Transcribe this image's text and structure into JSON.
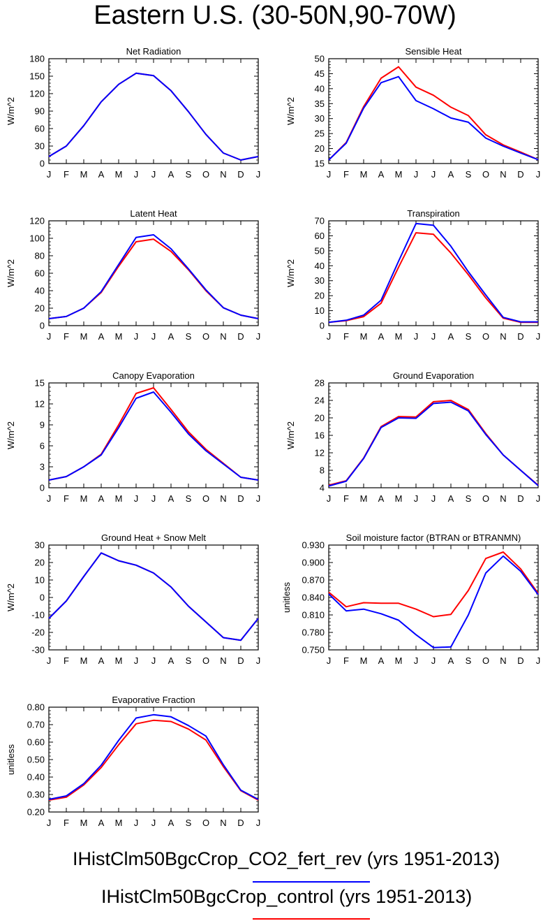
{
  "title": "Eastern U.S. (30-50N,90-70W)",
  "colors": {
    "fert_rev": "#0000ff",
    "control": "#ff0000"
  },
  "legend": {
    "entries": [
      {
        "label": "IHistClm50BgcCrop_CO2_fert_rev (yrs 1951-2013)",
        "color": "#0000ff"
      },
      {
        "label": "IHistClm50BgcCrop_control (yrs 1951-2013)",
        "color": "#ff0000"
      }
    ]
  },
  "chart_data": [
    {
      "type": "line",
      "title": "Net Radiation",
      "ylabel": "W/m^2",
      "categories": [
        "J",
        "F",
        "M",
        "A",
        "M",
        "J",
        "J",
        "A",
        "S",
        "O",
        "N",
        "D",
        "J"
      ],
      "ylim": [
        0,
        180
      ],
      "yticks": [
        "0",
        "30",
        "60",
        "90",
        "120",
        "150",
        "180"
      ],
      "series": [
        {
          "color": "#ff0000",
          "values": [
            12,
            30,
            65,
            106,
            136,
            155,
            151,
            125,
            89,
            50,
            18,
            6,
            12
          ]
        },
        {
          "color": "#0000ff",
          "values": [
            12,
            30,
            65,
            106,
            136,
            155,
            151,
            125,
            89,
            50,
            18,
            6,
            12
          ]
        }
      ]
    },
    {
      "type": "line",
      "title": "Sensible Heat",
      "ylabel": "W/m^2",
      "categories": [
        "J",
        "F",
        "M",
        "A",
        "M",
        "J",
        "J",
        "A",
        "S",
        "O",
        "N",
        "D",
        "J"
      ],
      "ylim": [
        15,
        50
      ],
      "yticks": [
        "15",
        "20",
        "25",
        "30",
        "35",
        "40",
        "45",
        "50"
      ],
      "series": [
        {
          "color": "#ff0000",
          "values": [
            16.2,
            22,
            34,
            43.5,
            47.3,
            40.5,
            37.8,
            33.8,
            31,
            24.6,
            21.2,
            18.8,
            16.3
          ]
        },
        {
          "color": "#0000ff",
          "values": [
            16.2,
            21.8,
            33.5,
            42,
            44,
            36,
            33.3,
            30.2,
            28.8,
            23.5,
            20.8,
            18.5,
            16.3
          ]
        }
      ]
    },
    {
      "type": "line",
      "title": "Latent Heat",
      "ylabel": "W/m^2",
      "categories": [
        "J",
        "F",
        "M",
        "A",
        "M",
        "J",
        "J",
        "A",
        "S",
        "O",
        "N",
        "D",
        "J"
      ],
      "ylim": [
        0,
        120
      ],
      "yticks": [
        "0",
        "20",
        "40",
        "60",
        "80",
        "100",
        "120"
      ],
      "series": [
        {
          "color": "#ff0000",
          "values": [
            8,
            10.5,
            20,
            38,
            68,
            96,
            99,
            85,
            64,
            40,
            20.5,
            12,
            8
          ]
        },
        {
          "color": "#0000ff",
          "values": [
            8,
            10.5,
            20,
            39,
            70,
            101,
            104,
            88,
            65,
            41,
            20.5,
            12,
            8
          ]
        }
      ]
    },
    {
      "type": "line",
      "title": "Transpiration",
      "ylabel": "W/m^2",
      "categories": [
        "J",
        "F",
        "M",
        "A",
        "M",
        "J",
        "J",
        "A",
        "S",
        "O",
        "N",
        "D",
        "J"
      ],
      "ylim": [
        0,
        70
      ],
      "yticks": [
        "0",
        "10",
        "20",
        "30",
        "40",
        "50",
        "60",
        "70"
      ],
      "series": [
        {
          "color": "#ff0000",
          "values": [
            2.2,
            3.3,
            6,
            15,
            39,
            62,
            61,
            48.5,
            34,
            18.5,
            5,
            2.2,
            2.2
          ]
        },
        {
          "color": "#0000ff",
          "values": [
            2.2,
            3.6,
            7,
            17,
            43,
            68.2,
            67,
            53,
            36,
            20.5,
            5.5,
            2.5,
            2.5
          ]
        }
      ]
    },
    {
      "type": "line",
      "title": "Canopy Evaporation",
      "ylabel": "W/m^2",
      "categories": [
        "J",
        "F",
        "M",
        "A",
        "M",
        "J",
        "J",
        "A",
        "S",
        "O",
        "N",
        "D",
        "J"
      ],
      "ylim": [
        0,
        15
      ],
      "yticks": [
        "0",
        "3",
        "6",
        "9",
        "12",
        "15"
      ],
      "series": [
        {
          "color": "#ff0000",
          "values": [
            1.1,
            1.6,
            3,
            4.8,
            9,
            13.5,
            14.3,
            11.2,
            8,
            5.5,
            3.5,
            1.5,
            1.1
          ]
        },
        {
          "color": "#0000ff",
          "values": [
            1.1,
            1.6,
            3,
            4.7,
            8.6,
            12.8,
            13.7,
            10.8,
            7.7,
            5.3,
            3.4,
            1.5,
            1.1
          ]
        }
      ]
    },
    {
      "type": "line",
      "title": "Ground Evaporation",
      "ylabel": "W/m^2",
      "categories": [
        "J",
        "F",
        "M",
        "A",
        "M",
        "J",
        "J",
        "A",
        "S",
        "O",
        "N",
        "D",
        "J"
      ],
      "ylim": [
        4,
        28
      ],
      "yticks": [
        "4",
        "8",
        "12",
        "16",
        "20",
        "24",
        "28"
      ],
      "series": [
        {
          "color": "#ff0000",
          "values": [
            4.6,
            5.6,
            10.8,
            18,
            20.3,
            20.2,
            23.7,
            24,
            21.9,
            16.4,
            11.5,
            8,
            4.6
          ]
        },
        {
          "color": "#0000ff",
          "values": [
            4.4,
            5.5,
            10.7,
            17.8,
            20,
            19.9,
            23.3,
            23.6,
            21.6,
            16.2,
            11.5,
            8,
            4.5
          ]
        }
      ]
    },
    {
      "type": "line",
      "title": "Ground Heat + Snow Melt",
      "ylabel": "W/m^2",
      "categories": [
        "J",
        "F",
        "M",
        "A",
        "M",
        "J",
        "J",
        "A",
        "S",
        "O",
        "N",
        "D",
        "J"
      ],
      "ylim": [
        -30,
        30
      ],
      "yticks": [
        "-30",
        "-20",
        "-10",
        "0",
        "10",
        "20",
        "30"
      ],
      "series": [
        {
          "color": "#ff0000",
          "values": [
            -12,
            -2,
            12,
            25.5,
            21,
            18.5,
            14,
            6,
            -5,
            -14,
            -23,
            -24.5,
            -12
          ]
        },
        {
          "color": "#0000ff",
          "values": [
            -12,
            -2,
            12,
            25.5,
            21,
            18.5,
            14,
            6,
            -5,
            -14,
            -23,
            -24.5,
            -12
          ]
        }
      ]
    },
    {
      "type": "line",
      "title": "Soil moisture factor (BTRAN or BTRANMN)",
      "ylabel": "unitless",
      "categories": [
        "J",
        "F",
        "M",
        "A",
        "M",
        "J",
        "J",
        "A",
        "S",
        "O",
        "N",
        "D",
        "J"
      ],
      "ylim": [
        0.75,
        0.93
      ],
      "yticks": [
        "0.750",
        "0.780",
        "0.810",
        "0.840",
        "0.870",
        "0.900",
        "0.930"
      ],
      "series": [
        {
          "color": "#ff0000",
          "values": [
            0.849,
            0.824,
            0.831,
            0.83,
            0.83,
            0.82,
            0.807,
            0.811,
            0.852,
            0.907,
            0.918,
            0.889,
            0.847
          ]
        },
        {
          "color": "#0000ff",
          "values": [
            0.846,
            0.817,
            0.82,
            0.812,
            0.801,
            0.776,
            0.754,
            0.755,
            0.81,
            0.882,
            0.911,
            0.885,
            0.845
          ]
        }
      ]
    },
    {
      "type": "line",
      "title": "Evaporative Fraction",
      "ylabel": "unitless",
      "categories": [
        "J",
        "F",
        "M",
        "A",
        "M",
        "J",
        "J",
        "A",
        "S",
        "O",
        "N",
        "D",
        "J"
      ],
      "ylim": [
        0.2,
        0.8
      ],
      "yticks": [
        "0.20",
        "0.30",
        "0.40",
        "0.50",
        "0.60",
        "0.70",
        "0.80"
      ],
      "series": [
        {
          "color": "#ff0000",
          "values": [
            0.268,
            0.285,
            0.355,
            0.455,
            0.585,
            0.705,
            0.725,
            0.718,
            0.675,
            0.612,
            0.46,
            0.322,
            0.268
          ]
        },
        {
          "color": "#0000ff",
          "values": [
            0.272,
            0.292,
            0.362,
            0.468,
            0.61,
            0.738,
            0.757,
            0.745,
            0.695,
            0.635,
            0.47,
            0.325,
            0.272
          ]
        }
      ]
    }
  ]
}
